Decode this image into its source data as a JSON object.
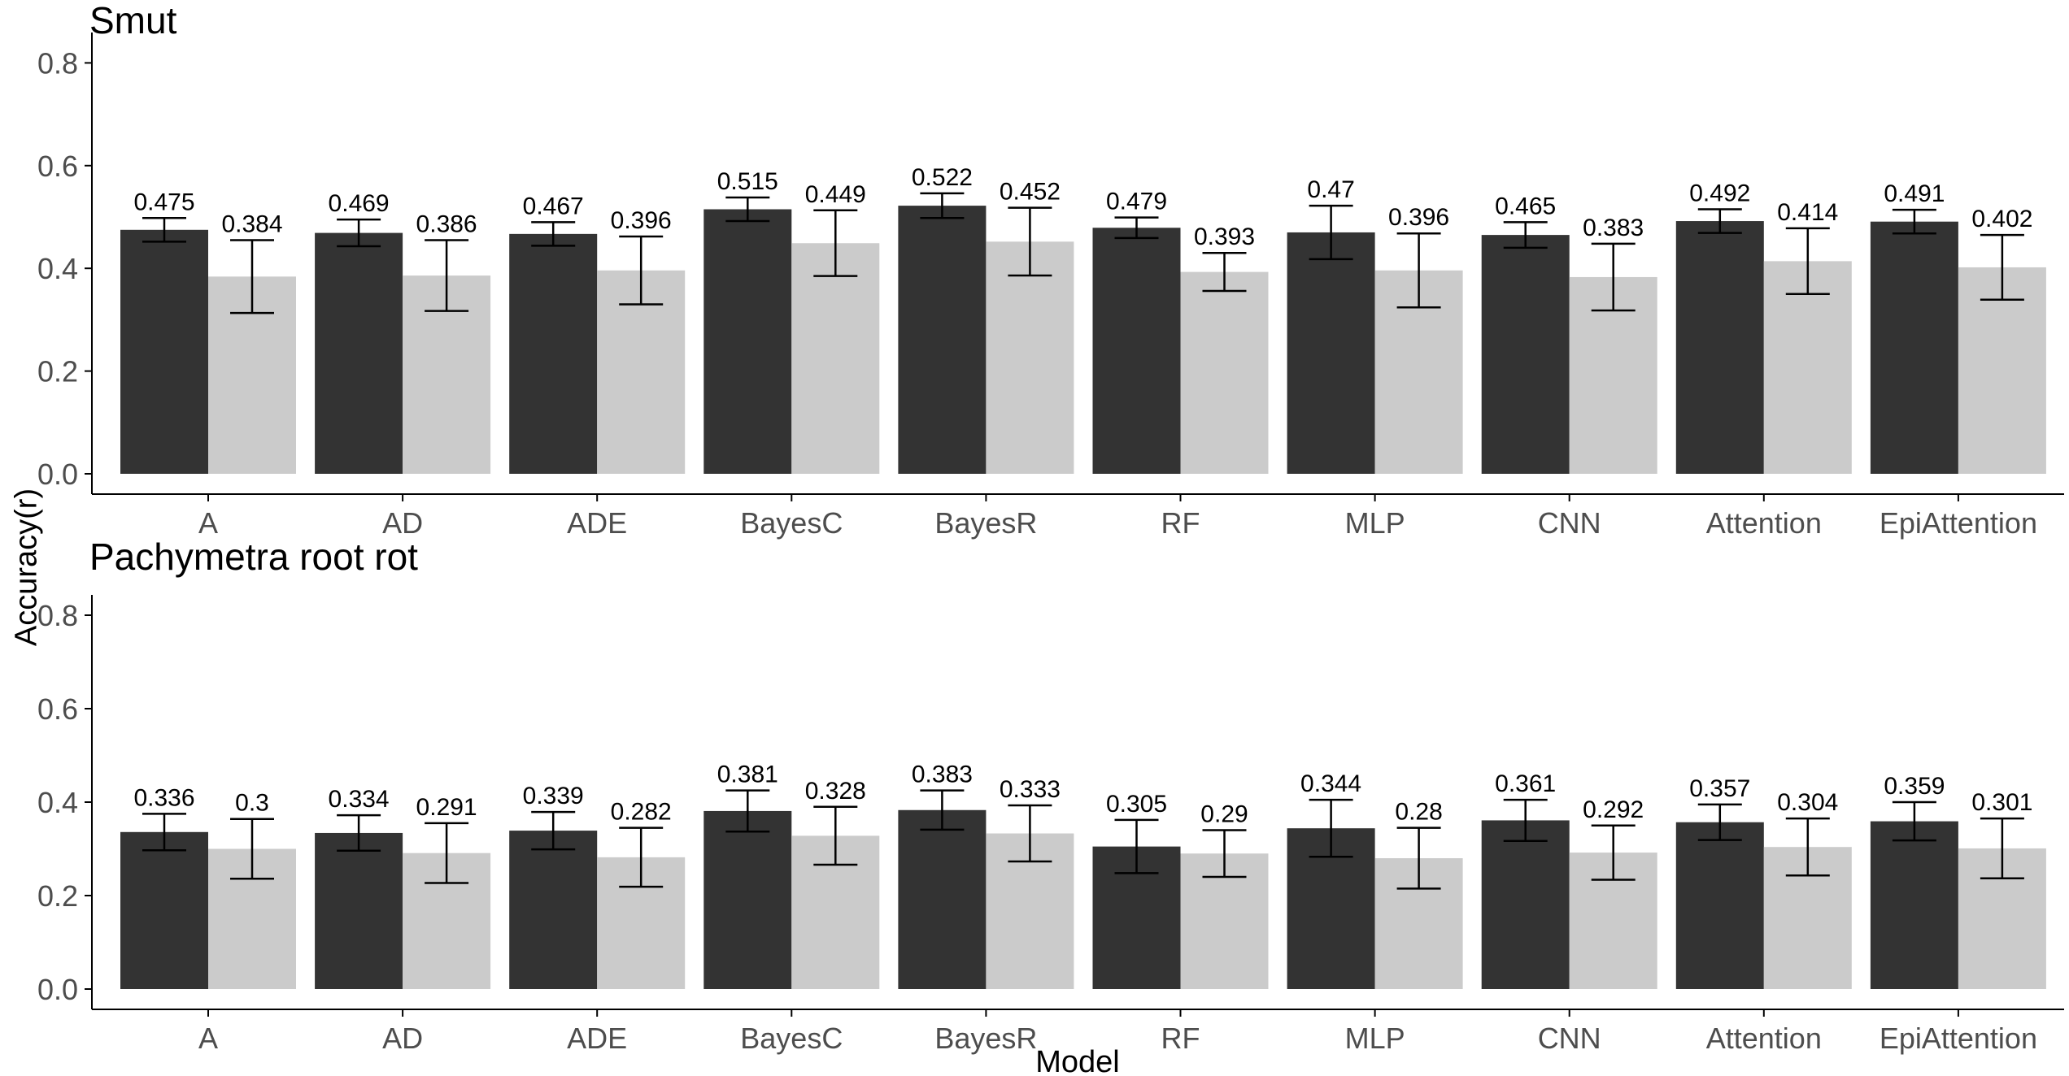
{
  "figure": {
    "ylabel": "Accuracy(r)",
    "xlabel": "Model",
    "y_ticks": [
      "0.0",
      "0.2",
      "0.4",
      "0.6",
      "0.8"
    ],
    "colors": {
      "dark_bar": "#333333",
      "light_bar": "#cbcbcb",
      "axis_line": "#000000",
      "tick_text": "#4d4d4d",
      "value_text": "#000000",
      "background": "#ffffff"
    }
  },
  "chart_data": [
    {
      "type": "bar",
      "title": "Smut",
      "xlabel": "Model",
      "ylabel": "Accuracy(r)",
      "ylim": [
        0,
        0.8
      ],
      "grid": false,
      "legend": "none",
      "categories": [
        "A",
        "AD",
        "ADE",
        "BayesC",
        "BayesR",
        "RF",
        "MLP",
        "CNN",
        "Attention",
        "EpiAttention"
      ],
      "series": [
        {
          "name": "dark",
          "color": "#333333",
          "values": [
            0.475,
            0.469,
            0.467,
            0.515,
            0.522,
            0.479,
            0.47,
            0.465,
            0.492,
            0.491
          ],
          "value_labels": [
            "0.475",
            "0.469",
            "0.467",
            "0.515",
            "0.522",
            "0.479",
            "0.47",
            "0.465",
            "0.492",
            "0.491"
          ],
          "errors": [
            0.023,
            0.026,
            0.023,
            0.023,
            0.024,
            0.02,
            0.052,
            0.025,
            0.023,
            0.023
          ]
        },
        {
          "name": "light",
          "color": "#cbcbcb",
          "values": [
            0.384,
            0.386,
            0.396,
            0.449,
            0.452,
            0.393,
            0.396,
            0.383,
            0.414,
            0.402
          ],
          "value_labels": [
            "0.384",
            "0.386",
            "0.396",
            "0.449",
            "0.452",
            "0.393",
            "0.396",
            "0.383",
            "0.414",
            "0.402"
          ],
          "errors": [
            0.071,
            0.069,
            0.066,
            0.064,
            0.066,
            0.037,
            0.072,
            0.065,
            0.064,
            0.063
          ]
        }
      ]
    },
    {
      "type": "bar",
      "title": "Pachymetra root rot",
      "xlabel": "Model",
      "ylabel": "Accuracy(r)",
      "ylim": [
        0,
        0.8
      ],
      "grid": false,
      "legend": "none",
      "categories": [
        "A",
        "AD",
        "ADE",
        "BayesC",
        "BayesR",
        "RF",
        "MLP",
        "CNN",
        "Attention",
        "EpiAttention"
      ],
      "series": [
        {
          "name": "dark",
          "color": "#333333",
          "values": [
            0.336,
            0.334,
            0.339,
            0.381,
            0.383,
            0.305,
            0.344,
            0.361,
            0.357,
            0.359
          ],
          "value_labels": [
            "0.336",
            "0.334",
            "0.339",
            "0.381",
            "0.383",
            "0.305",
            "0.344",
            "0.361",
            "0.357",
            "0.359"
          ],
          "errors": [
            0.039,
            0.038,
            0.04,
            0.044,
            0.042,
            0.057,
            0.061,
            0.044,
            0.038,
            0.041
          ]
        },
        {
          "name": "light",
          "color": "#cbcbcb",
          "values": [
            0.3,
            0.291,
            0.282,
            0.328,
            0.333,
            0.29,
            0.28,
            0.292,
            0.304,
            0.301
          ],
          "value_labels": [
            "0.3",
            "0.291",
            "0.282",
            "0.328",
            "0.333",
            "0.29",
            "0.28",
            "0.292",
            "0.304",
            "0.301"
          ],
          "errors": [
            0.064,
            0.064,
            0.063,
            0.062,
            0.06,
            0.05,
            0.065,
            0.058,
            0.061,
            0.064
          ]
        }
      ]
    }
  ]
}
